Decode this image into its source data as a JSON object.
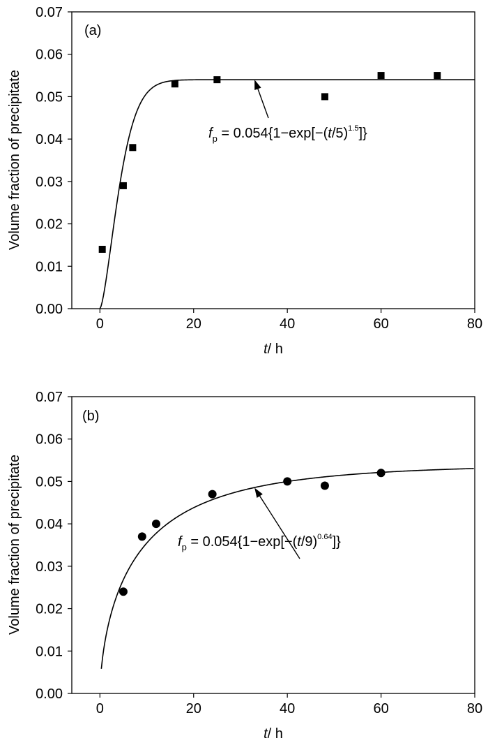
{
  "colors": {
    "ink": "#000000",
    "background": "#ffffff"
  },
  "chart_data": [
    {
      "type": "scatter",
      "panel_label": "(a)",
      "xlabel_var": "t",
      "xlabel_unit": "/ h",
      "ylabel": "Volume fraction of precipitate",
      "xlim": [
        -6,
        80
      ],
      "ylim": [
        0,
        0.07
      ],
      "xticks": [
        "0",
        "20",
        "40",
        "60",
        "80"
      ],
      "yticks": [
        "0.00",
        "0.01",
        "0.02",
        "0.03",
        "0.04",
        "0.05",
        "0.06",
        "0.07"
      ],
      "marker": "square",
      "grid": false,
      "series": [
        {
          "kind": "points",
          "x": [
            0.5,
            5,
            7,
            16,
            25,
            48,
            60,
            72
          ],
          "y": [
            0.014,
            0.029,
            0.038,
            0.053,
            0.054,
            0.05,
            0.055,
            0.055
          ]
        },
        {
          "kind": "fit",
          "A": 0.054,
          "tau": 5,
          "n": 1.5
        }
      ],
      "annotation": {
        "eq_f": "f",
        "eq_sub": "p",
        "eq_main": " = 0.054{1−exp[−(",
        "eq_t": "t",
        "eq_mid": "/5)",
        "eq_sup": "1.5",
        "eq_end": "]}",
        "arrow_target": [
          33,
          0.054
        ]
      }
    },
    {
      "type": "scatter",
      "panel_label": "(b)",
      "xlabel_var": "t",
      "xlabel_unit": "/ h",
      "ylabel": "Volume fraction of precipitate",
      "xlim": [
        -6,
        80
      ],
      "ylim": [
        0,
        0.07
      ],
      "xticks": [
        "0",
        "20",
        "40",
        "60",
        "80"
      ],
      "yticks": [
        "0.00",
        "0.01",
        "0.02",
        "0.03",
        "0.04",
        "0.05",
        "0.06",
        "0.07"
      ],
      "marker": "circle",
      "grid": false,
      "series": [
        {
          "kind": "points",
          "x": [
            5,
            9,
            12,
            24,
            40,
            48,
            60
          ],
          "y": [
            0.024,
            0.037,
            0.04,
            0.047,
            0.05,
            0.049,
            0.052
          ]
        },
        {
          "kind": "fit",
          "A": 0.054,
          "tau": 9,
          "n": 0.64
        }
      ],
      "annotation": {
        "eq_f": "f",
        "eq_sub": "p",
        "eq_main": " = 0.054{1−exp[−(",
        "eq_t": "t",
        "eq_mid": "/9)",
        "eq_sup": "0.64",
        "eq_end": "]}",
        "arrow_target": [
          33,
          0.0485
        ]
      }
    }
  ]
}
